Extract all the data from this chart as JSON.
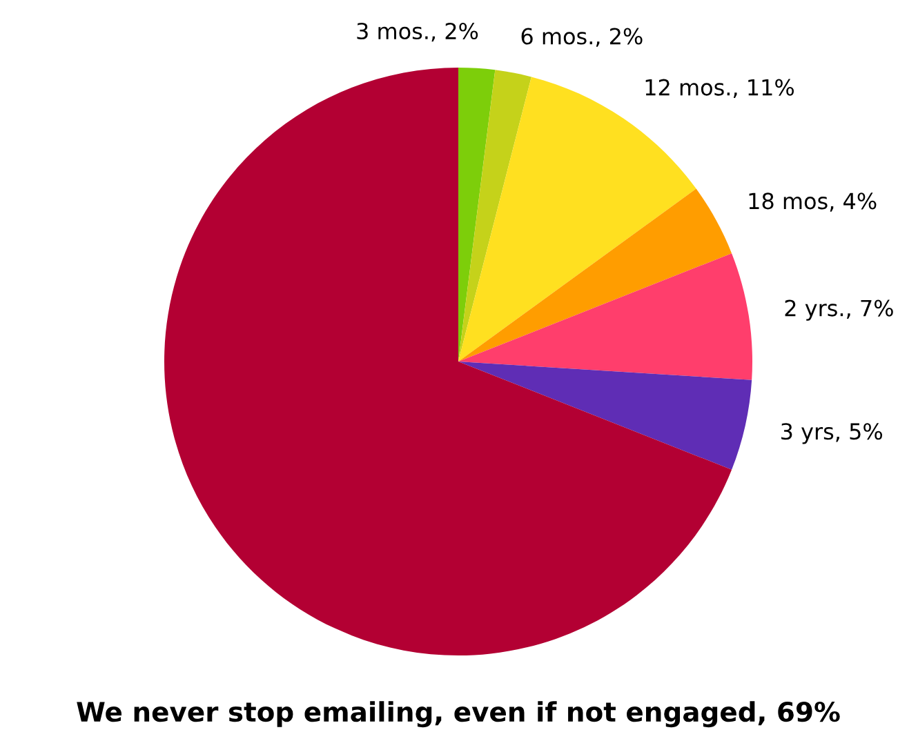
{
  "chart_data": {
    "type": "pie",
    "categories": [
      "3 mos.",
      "6 mos.",
      "12 mos.",
      "18 mos",
      "2 yrs.",
      "3 yrs",
      "We never stop emailing, even if not engaged"
    ],
    "values": [
      2,
      2,
      11,
      4,
      7,
      5,
      69
    ],
    "value_labels": [
      "2%",
      "2%",
      "11%",
      "4%",
      "7%",
      "5%",
      "69%"
    ],
    "colors": [
      "#7dce0a",
      "#c5d21a",
      "#ffe020",
      "#ff9d00",
      "#ff3e6c",
      "#5f2db5",
      "#b30033"
    ],
    "legend": false
  }
}
